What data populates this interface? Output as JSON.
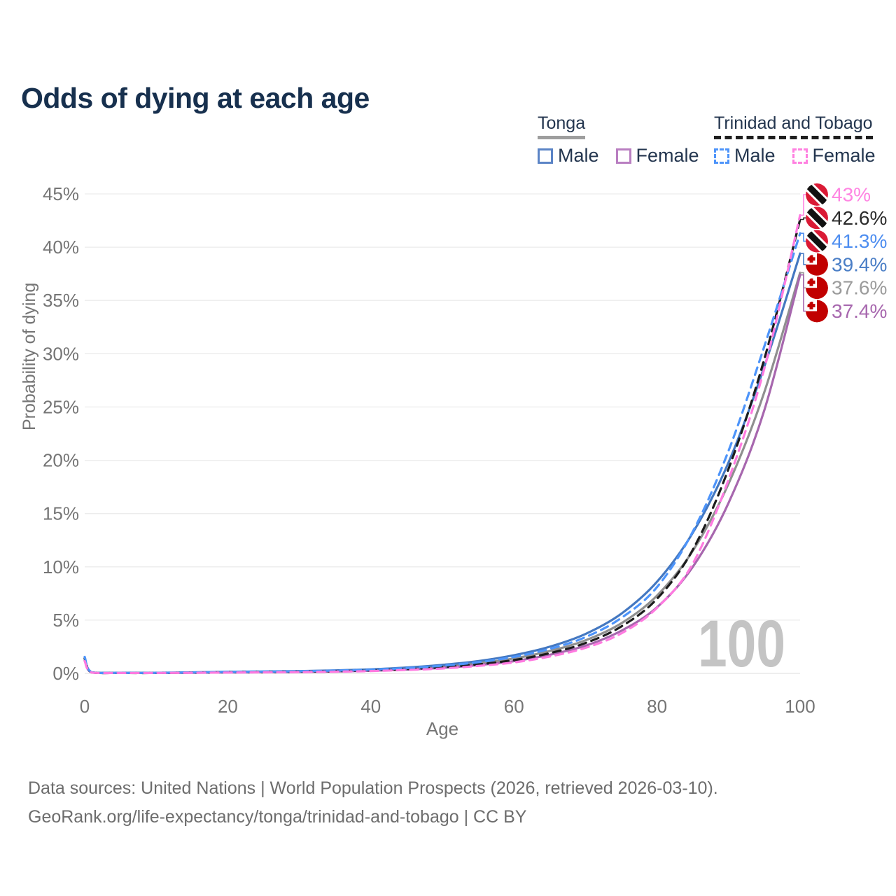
{
  "title": "Odds of dying at each age",
  "watermark": "100",
  "legend": {
    "groups": [
      {
        "country": "Tonga",
        "style": "solid",
        "underline_color": "#9e9e9e",
        "items": [
          {
            "label": "Male",
            "color": "#5b84c6"
          },
          {
            "label": "Female",
            "color": "#b97ec1"
          }
        ]
      },
      {
        "country": "Trinidad and Tobago",
        "style": "dashed",
        "underline_color": "#1f1f1f",
        "items": [
          {
            "label": "Male",
            "color": "#4d94fa"
          },
          {
            "label": "Female",
            "color": "#ff80e0"
          }
        ]
      }
    ]
  },
  "chart_data": {
    "type": "line",
    "title": "Odds of dying at each age",
    "xlabel": "Age",
    "ylabel": "Probability of dying",
    "xlim": [
      0,
      100
    ],
    "ylim": [
      0,
      45
    ],
    "grid": true,
    "legend_position": "top-right",
    "x_ticks": [
      {
        "v": 0,
        "label": "0"
      },
      {
        "v": 20,
        "label": "20"
      },
      {
        "v": 40,
        "label": "40"
      },
      {
        "v": 60,
        "label": "60"
      },
      {
        "v": 80,
        "label": "80"
      },
      {
        "v": 100,
        "label": "100"
      }
    ],
    "y_ticks": [
      {
        "v": 0,
        "label": "0%"
      },
      {
        "v": 5,
        "label": "5%"
      },
      {
        "v": 10,
        "label": "10%"
      },
      {
        "v": 15,
        "label": "15%"
      },
      {
        "v": 20,
        "label": "20%"
      },
      {
        "v": 25,
        "label": "25%"
      },
      {
        "v": 30,
        "label": "30%"
      },
      {
        "v": 35,
        "label": "35%"
      },
      {
        "v": 40,
        "label": "40%"
      },
      {
        "v": 45,
        "label": "45%"
      }
    ],
    "x": [
      0,
      1,
      5,
      10,
      15,
      20,
      25,
      30,
      35,
      40,
      45,
      50,
      55,
      60,
      65,
      70,
      75,
      80,
      85,
      90,
      95,
      100
    ],
    "series": [
      {
        "name": "Tonga Both sexes",
        "country": "Tonga",
        "sex": "both",
        "dash": "solid",
        "color": "#8f8f8f",
        "width": 3.2,
        "values": [
          1.35,
          0.09,
          0.05,
          0.05,
          0.08,
          0.12,
          0.15,
          0.18,
          0.23,
          0.31,
          0.45,
          0.65,
          0.95,
          1.4,
          2.1,
          3.1,
          4.7,
          7.3,
          11.5,
          17.8,
          26.4,
          37.6
        ],
        "end_label": {
          "text": "37.6%",
          "color": "#9b9b9b",
          "flag": "tonga",
          "slot": 4
        }
      },
      {
        "name": "Tonga Female",
        "country": "Tonga",
        "sex": "female",
        "dash": "solid",
        "color": "#a767ae",
        "width": 3.2,
        "values": [
          1.2,
          0.08,
          0.04,
          0.04,
          0.06,
          0.09,
          0.11,
          0.14,
          0.18,
          0.25,
          0.36,
          0.52,
          0.78,
          1.15,
          1.75,
          2.6,
          4.0,
          6.2,
          10.0,
          16.0,
          24.7,
          37.4
        ],
        "end_label": {
          "text": "37.4%",
          "color": "#a767ae",
          "flag": "tonga",
          "slot": 5
        }
      },
      {
        "name": "Tonga Male",
        "country": "Tonga",
        "sex": "male",
        "dash": "solid",
        "color": "#4478c1",
        "width": 3.2,
        "values": [
          1.5,
          0.1,
          0.06,
          0.06,
          0.1,
          0.15,
          0.18,
          0.22,
          0.28,
          0.38,
          0.55,
          0.8,
          1.15,
          1.7,
          2.5,
          3.7,
          5.6,
          8.6,
          13.2,
          19.8,
          28.8,
          39.4
        ],
        "end_label": {
          "text": "39.4%",
          "color": "#4a7ec6",
          "flag": "tonga",
          "slot": 3
        }
      },
      {
        "name": "Trinidad and Tobago Both sexes",
        "country": "Trinidad and Tobago",
        "sex": "both",
        "dash": "dashed",
        "color": "#1c1c1c",
        "width": 3.2,
        "values": [
          1.4,
          0.09,
          0.04,
          0.04,
          0.07,
          0.11,
          0.13,
          0.16,
          0.21,
          0.28,
          0.4,
          0.58,
          0.85,
          1.25,
          1.9,
          2.85,
          4.4,
          7.0,
          11.6,
          19.2,
          29.5,
          42.6
        ],
        "end_label": {
          "text": "42.6%",
          "color": "#2b2b2b",
          "flag": "trinidad",
          "slot": 1
        }
      },
      {
        "name": "Trinidad and Tobago Male",
        "country": "Trinidad and Tobago",
        "sex": "male",
        "dash": "dashed",
        "color": "#4d94fa",
        "width": 3.2,
        "values": [
          1.55,
          0.1,
          0.05,
          0.05,
          0.09,
          0.14,
          0.17,
          0.2,
          0.26,
          0.35,
          0.5,
          0.72,
          1.05,
          1.55,
          2.3,
          3.4,
          5.2,
          8.1,
          13.3,
          20.9,
          30.7,
          41.3
        ],
        "end_label": {
          "text": "41.3%",
          "color": "#4d8df0",
          "flag": "trinidad",
          "slot": 2
        }
      },
      {
        "name": "Trinidad and Tobago Female",
        "country": "Trinidad and Tobago",
        "sex": "female",
        "dash": "dashed",
        "color": "#ff7ae0",
        "width": 3.2,
        "values": [
          1.15,
          0.08,
          0.04,
          0.04,
          0.06,
          0.08,
          0.1,
          0.12,
          0.16,
          0.22,
          0.32,
          0.46,
          0.7,
          1.03,
          1.58,
          2.4,
          3.75,
          6.15,
          10.3,
          18.2,
          28.6,
          43.0
        ],
        "end_label": {
          "text": "43%",
          "color": "#ff85e2",
          "flag": "trinidad",
          "slot": 0
        }
      }
    ]
  },
  "footer": {
    "line1": "Data sources: United Nations | World Population Prospects (2026, retrieved 2026-03-10).",
    "line2": "GeoRank.org/life-expectancy/tonga/trinidad-and-tobago | CC BY"
  }
}
